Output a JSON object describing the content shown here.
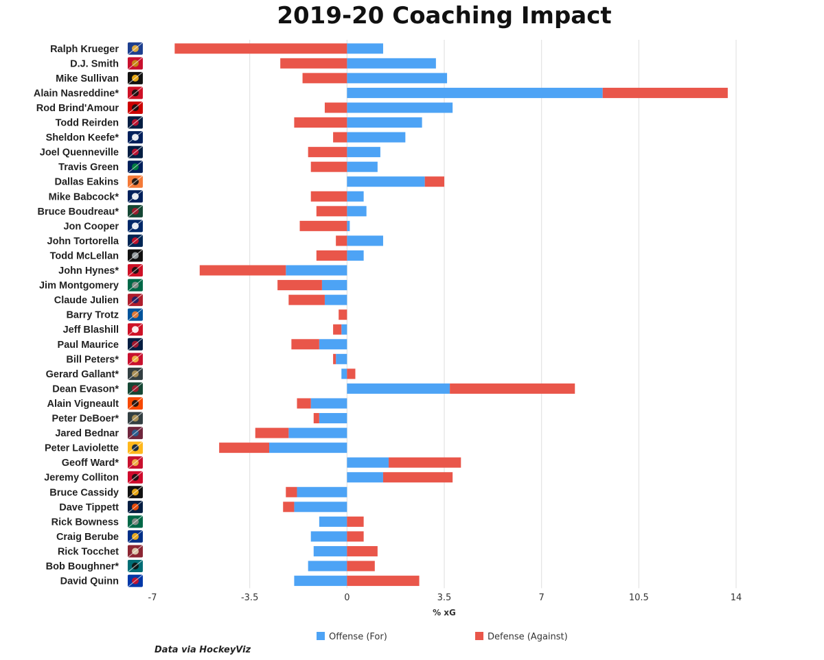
{
  "chart_data": {
    "type": "bar",
    "orientation": "horizontal",
    "stacked": true,
    "title": "2019-20 Coaching Impact",
    "xlabel": "% xG",
    "ylabel": "",
    "xlim": [
      -7,
      14
    ],
    "xticks": [
      -7,
      -3.5,
      0,
      3.5,
      7,
      10.5,
      14
    ],
    "xtick_labels": [
      "-7",
      "-3.5",
      "0",
      "3.5",
      "7",
      "10.5",
      "14"
    ],
    "grid": true,
    "legend_position": "bottom-center",
    "source": "Data via HockeyViz",
    "categories": [
      "Ralph Krueger",
      "D.J. Smith",
      "Mike Sullivan",
      "Alain Nasreddine*",
      "Rod Brind'Amour",
      "Todd Reirden",
      "Sheldon Keefe*",
      "Joel Quenneville",
      "Travis Green",
      "Dallas Eakins",
      "Mike Babcock*",
      "Bruce Boudreau*",
      "Jon Cooper",
      "John Tortorella",
      "Todd McLellan",
      "John Hynes*",
      "Jim Montgomery",
      "Claude Julien",
      "Barry Trotz",
      "Jeff Blashill",
      "Paul Maurice",
      "Bill Peters*",
      "Gerard Gallant*",
      "Dean Evason*",
      "Alain Vigneault",
      "Peter DeBoer*",
      "Jared Bednar",
      "Peter Laviolette",
      "Geoff Ward*",
      "Jeremy Colliton",
      "Bruce Cassidy",
      "Dave Tippett",
      "Rick Bowness",
      "Craig Berube",
      "Rick Tocchet",
      "Bob Boughner*",
      "David Quinn"
    ],
    "series": [
      {
        "name": "Offense (For)",
        "color": "#4da3f5",
        "values": [
          1.3,
          3.2,
          3.6,
          9.2,
          3.8,
          2.7,
          2.1,
          1.2,
          1.1,
          2.8,
          0.6,
          0.7,
          0.1,
          1.3,
          0.6,
          -2.2,
          -0.9,
          -0.8,
          0,
          -0.2,
          -1.0,
          -0.4,
          -0.2,
          3.7,
          -1.3,
          -1.0,
          -2.1,
          -2.8,
          1.5,
          1.3,
          -1.8,
          -1.9,
          -1.0,
          -1.3,
          -1.2,
          -1.4,
          -1.9
        ]
      },
      {
        "name": "Defense (Against)",
        "color": "#e9564a",
        "values": [
          -6.2,
          -2.4,
          -1.6,
          4.5,
          -0.8,
          -1.9,
          -0.5,
          -1.4,
          -1.3,
          0.7,
          -1.3,
          -1.1,
          -1.7,
          -0.4,
          -1.1,
          -3.1,
          -1.6,
          -1.3,
          -0.3,
          -0.3,
          -1.0,
          -0.1,
          0.3,
          4.5,
          -0.5,
          -0.2,
          -1.2,
          -1.8,
          2.6,
          2.5,
          -0.4,
          -0.4,
          0.6,
          0.6,
          1.1,
          1.0,
          2.6
        ]
      }
    ]
  },
  "team_logos": [
    {
      "name": "buffalo-logo",
      "primary": "#1d3f8f",
      "secondary": "#f2b53a"
    },
    {
      "name": "ottawa-logo",
      "primary": "#c8102e",
      "secondary": "#c69214"
    },
    {
      "name": "pittsburgh-logo",
      "primary": "#111111",
      "secondary": "#fcb514"
    },
    {
      "name": "new-jersey-logo",
      "primary": "#ce1126",
      "secondary": "#111111"
    },
    {
      "name": "carolina-logo",
      "primary": "#cc0000",
      "secondary": "#111111"
    },
    {
      "name": "washington-logo",
      "primary": "#041e42",
      "secondary": "#c8102e"
    },
    {
      "name": "toronto-logo",
      "primary": "#00205b",
      "secondary": "#ffffff"
    },
    {
      "name": "florida-logo",
      "primary": "#041e42",
      "secondary": "#c8102e"
    },
    {
      "name": "vancouver-logo",
      "primary": "#00205b",
      "secondary": "#00843d"
    },
    {
      "name": "anaheim-logo",
      "primary": "#f47a38",
      "secondary": "#111111"
    },
    {
      "name": "toronto-logo",
      "primary": "#00205b",
      "secondary": "#ffffff"
    },
    {
      "name": "minnesota-logo",
      "primary": "#154734",
      "secondary": "#a6192e"
    },
    {
      "name": "tampa-bay-logo",
      "primary": "#002868",
      "secondary": "#ffffff"
    },
    {
      "name": "columbus-logo",
      "primary": "#002654",
      "secondary": "#ce1126"
    },
    {
      "name": "los-angeles-logo",
      "primary": "#111111",
      "secondary": "#a2aaad"
    },
    {
      "name": "new-jersey-logo",
      "primary": "#ce1126",
      "secondary": "#111111"
    },
    {
      "name": "dallas-logo",
      "primary": "#006847",
      "secondary": "#8f8f8c"
    },
    {
      "name": "montreal-logo",
      "primary": "#af1e2d",
      "secondary": "#192168"
    },
    {
      "name": "ny-islanders-logo",
      "primary": "#00539b",
      "secondary": "#f47d30"
    },
    {
      "name": "detroit-logo",
      "primary": "#ce1126",
      "secondary": "#ffffff"
    },
    {
      "name": "winnipeg-logo",
      "primary": "#041e42",
      "secondary": "#ac162c"
    },
    {
      "name": "calgary-logo",
      "primary": "#c8102e",
      "secondary": "#f1be48"
    },
    {
      "name": "vegas-logo",
      "primary": "#333f42",
      "secondary": "#b4975a"
    },
    {
      "name": "minnesota-logo",
      "primary": "#154734",
      "secondary": "#a6192e"
    },
    {
      "name": "philadelphia-logo",
      "primary": "#f74902",
      "secondary": "#111111"
    },
    {
      "name": "vegas-logo",
      "primary": "#333f42",
      "secondary": "#b4975a"
    },
    {
      "name": "colorado-logo",
      "primary": "#6f263d",
      "secondary": "#236192"
    },
    {
      "name": "nashville-logo",
      "primary": "#ffb81c",
      "secondary": "#041e42"
    },
    {
      "name": "calgary-logo",
      "primary": "#c8102e",
      "secondary": "#f1be48"
    },
    {
      "name": "chicago-logo",
      "primary": "#cf0a2c",
      "secondary": "#111111"
    },
    {
      "name": "boston-logo",
      "primary": "#111111",
      "secondary": "#fcb514"
    },
    {
      "name": "edmonton-logo",
      "primary": "#041e42",
      "secondary": "#fc4c02"
    },
    {
      "name": "dallas-logo",
      "primary": "#006847",
      "secondary": "#8f8f8c"
    },
    {
      "name": "st-louis-logo",
      "primary": "#002f87",
      "secondary": "#fcb514"
    },
    {
      "name": "arizona-logo",
      "primary": "#8c2633",
      "secondary": "#e2d6b5"
    },
    {
      "name": "san-jose-logo",
      "primary": "#006d75",
      "secondary": "#111111"
    },
    {
      "name": "ny-rangers-logo",
      "primary": "#0038a8",
      "secondary": "#ce1126"
    }
  ]
}
